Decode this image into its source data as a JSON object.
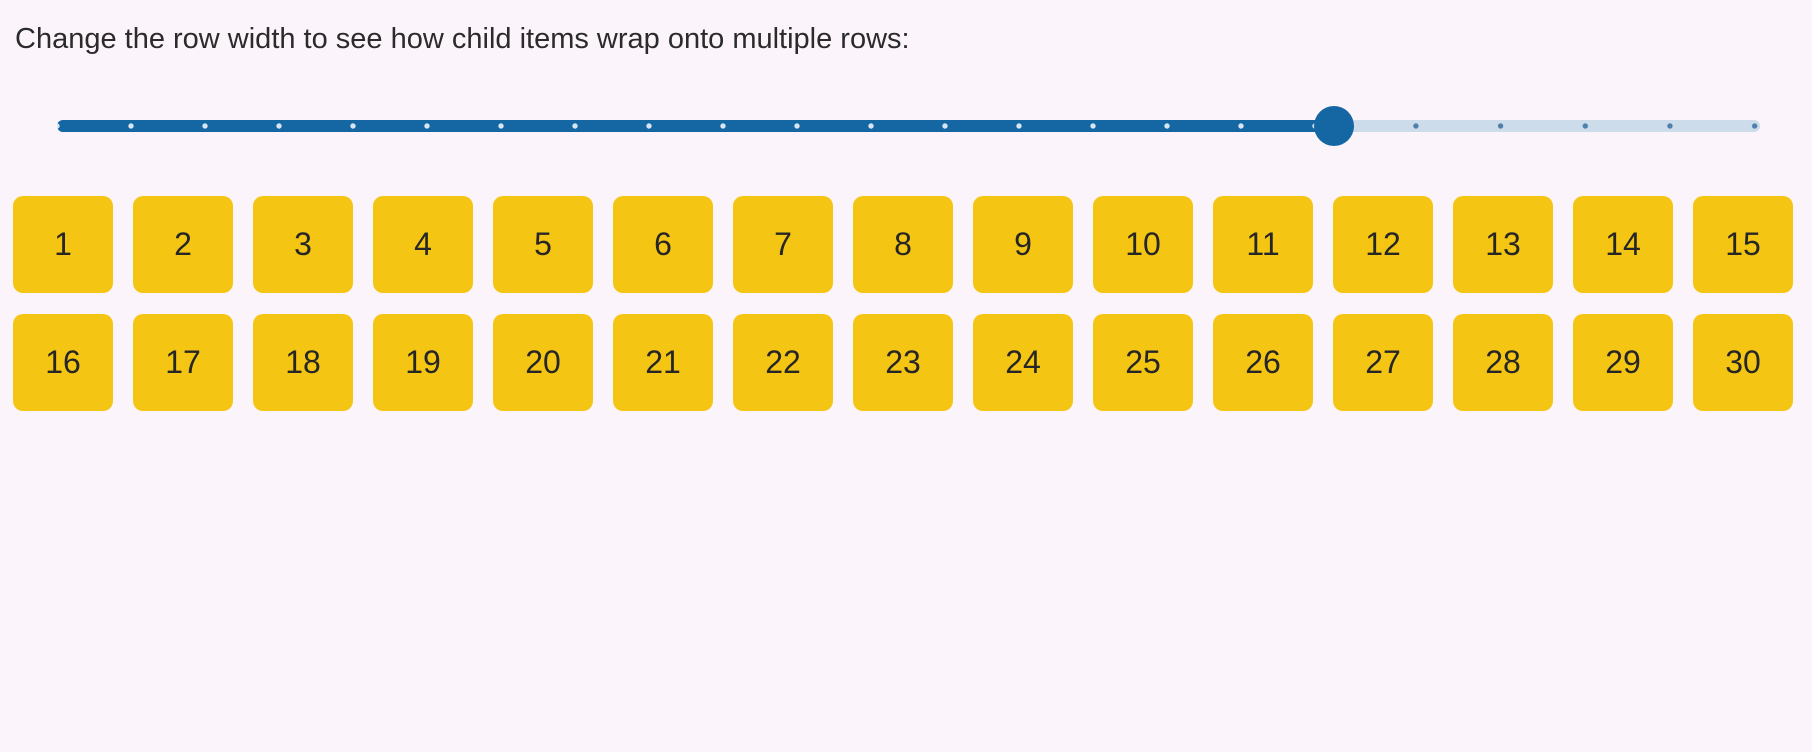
{
  "page": {
    "title": "Change the row width to see how child items wrap onto multiple rows:",
    "background_color": "#fcf4fb",
    "title_color": "#2b2b2b"
  },
  "slider": {
    "label": "row-width",
    "value_percent": 75,
    "accent_color": "#1567a3",
    "rail_color": "#cddcea",
    "rail_tick_color": "#4d80ab",
    "fill_tick_color": "#d9e6f1"
  },
  "items": {
    "labels": [
      "1",
      "2",
      "3",
      "4",
      "5",
      "6",
      "7",
      "8",
      "9",
      "10",
      "11",
      "12",
      "13",
      "14",
      "15",
      "16",
      "17",
      "18",
      "19",
      "20",
      "21",
      "22",
      "23",
      "24",
      "25",
      "26",
      "27",
      "28",
      "29",
      "30"
    ],
    "box_color": "#f5c514",
    "label_color": "#262626"
  }
}
